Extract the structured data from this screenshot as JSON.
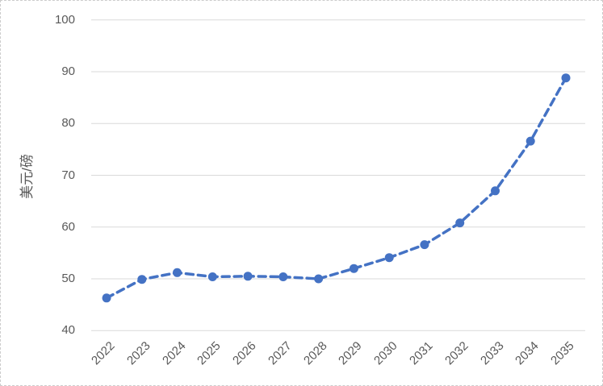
{
  "chart_data": {
    "type": "line",
    "title": "",
    "xlabel": "",
    "ylabel": "美元/磅",
    "categories": [
      "2022",
      "2023",
      "2024",
      "2025",
      "2026",
      "2027",
      "2028",
      "2029",
      "2030",
      "2031",
      "2032",
      "2033",
      "2034",
      "2035"
    ],
    "values": [
      46.3,
      49.9,
      51.2,
      50.4,
      50.5,
      50.4,
      50.0,
      52.0,
      54.1,
      56.6,
      60.8,
      67.0,
      76.6,
      88.8
    ],
    "ylim": [
      40,
      100
    ],
    "yticks": [
      40,
      50,
      60,
      70,
      80,
      90,
      100
    ],
    "grid": true,
    "legend": "none",
    "line_style": "dashed",
    "marker": "circle",
    "colors": {
      "line": "#4472C4",
      "grid": "#D9D9D9",
      "text": "#595959"
    }
  }
}
